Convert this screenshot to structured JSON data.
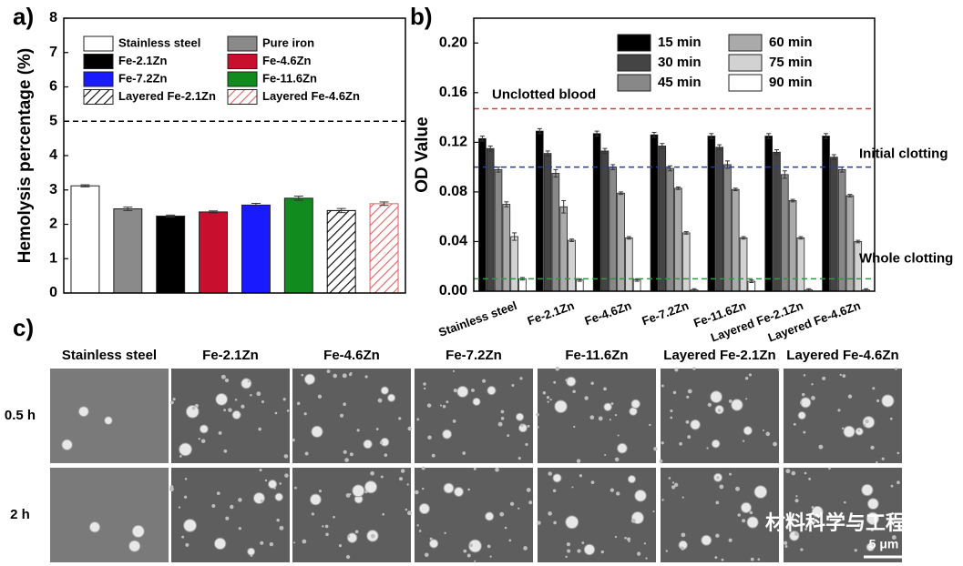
{
  "chart_data": [
    {
      "type": "bar",
      "panel": "a)",
      "y_label": "Hemolysis percentage (%)",
      "categories": [
        "Stainless steel",
        "Pure iron",
        "Fe-2.1Zn",
        "Fe-4.6Zn",
        "Fe-7.2Zn",
        "Fe-11.6Zn",
        "Layered Fe-2.1Zn",
        "Layered Fe-4.6Zn"
      ],
      "values": [
        3.12,
        2.45,
        2.24,
        2.36,
        2.56,
        2.76,
        2.4,
        2.6
      ],
      "errors": [
        0.03,
        0.05,
        0.03,
        0.03,
        0.05,
        0.06,
        0.06,
        0.05
      ],
      "colors": [
        "#ffffff",
        "#8a8a8a",
        "#000000",
        "#c8102e",
        "#1a1aff",
        "#118a1e",
        "#000000",
        "#e06060"
      ],
      "hatched": [
        false,
        false,
        false,
        false,
        false,
        false,
        true,
        true
      ],
      "ylim": [
        0,
        8
      ],
      "yticks": [
        0,
        1,
        2,
        3,
        4,
        5,
        6,
        7,
        8
      ],
      "reference_lines": [
        {
          "value": 5,
          "color": "#000000"
        }
      ]
    },
    {
      "type": "bar",
      "panel": "b)",
      "y_label": "OD Value",
      "categories": [
        "Stainless steel",
        "Fe-2.1Zn",
        "Fe-4.6Zn",
        "Fe-7.2Zn",
        "Fe-11.6Zn",
        "Layered Fe-2.1Zn",
        "Layered Fe-4.6Zn"
      ],
      "series": [
        {
          "name": "15 min",
          "color": "#000000",
          "values": [
            0.123,
            0.129,
            0.127,
            0.126,
            0.125,
            0.125,
            0.125
          ],
          "errors": [
            0.002,
            0.002,
            0.002,
            0.002,
            0.002,
            0.002,
            0.002
          ]
        },
        {
          "name": "30 min",
          "color": "#444444",
          "values": [
            0.115,
            0.111,
            0.113,
            0.117,
            0.116,
            0.112,
            0.108
          ],
          "errors": [
            0.002,
            0.002,
            0.002,
            0.002,
            0.002,
            0.002,
            0.002
          ]
        },
        {
          "name": "45 min",
          "color": "#888888",
          "values": [
            0.098,
            0.095,
            0.1,
            0.099,
            0.102,
            0.094,
            0.098
          ],
          "errors": [
            0.002,
            0.003,
            0.002,
            0.002,
            0.003,
            0.003,
            0.002
          ]
        },
        {
          "name": "60 min",
          "color": "#aaaaaa",
          "values": [
            0.07,
            0.068,
            0.079,
            0.083,
            0.082,
            0.073,
            0.077
          ],
          "errors": [
            0.002,
            0.005,
            0.001,
            0.001,
            0.001,
            0.001,
            0.001
          ]
        },
        {
          "name": "75 min",
          "color": "#d2d2d2",
          "values": [
            0.044,
            0.041,
            0.043,
            0.047,
            0.043,
            0.043,
            0.04
          ],
          "errors": [
            0.003,
            0.001,
            0.001,
            0.001,
            0.001,
            0.001,
            0.001
          ]
        },
        {
          "name": "90 min",
          "color": "#ffffff",
          "values": [
            0.01,
            0.009,
            0.009,
            0.001,
            0.008,
            0.001,
            0.001
          ],
          "errors": [
            0.001,
            0.001,
            0.001,
            0.001,
            0.001,
            0.001,
            0.001
          ]
        }
      ],
      "ylim": [
        0,
        0.22
      ],
      "yticks": [
        {
          "value": 0,
          "label": "0.00"
        },
        {
          "value": 0.04,
          "label": "0.04"
        },
        {
          "value": 0.08,
          "label": "0.08"
        },
        {
          "value": 0.12,
          "label": "0.12"
        },
        {
          "value": 0.16,
          "label": "0.16"
        },
        {
          "value": 0.2,
          "label": "0.20"
        }
      ],
      "reference_lines": [
        {
          "value": 0.147,
          "label": "Unclotted blood",
          "color": "#e53935"
        },
        {
          "value": 0.1,
          "label": "Initial clotting",
          "color": "#2733c9"
        },
        {
          "value": 0.01,
          "label": "Whole clotting",
          "color": "#2e9a3a"
        }
      ]
    }
  ],
  "panel_c": {
    "label": "c)",
    "columns": [
      "Stainless steel",
      "Fe-2.1Zn",
      "Fe-4.6Zn",
      "Fe-7.2Zn",
      "Fe-11.6Zn",
      "Layered Fe-2.1Zn",
      "Layered Fe-4.6Zn"
    ],
    "rows": [
      "0.5 h",
      "2 h"
    ],
    "scale_bar": "5 μm",
    "watermark": "材料科学与工程"
  }
}
